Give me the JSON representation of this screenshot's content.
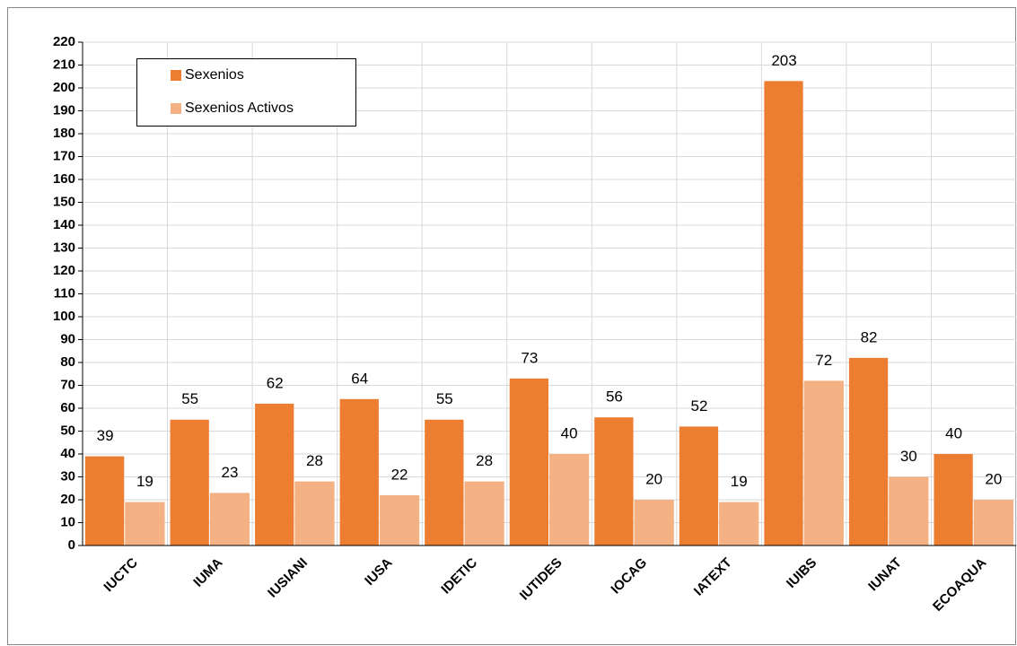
{
  "chart_data": {
    "type": "bar",
    "categories": [
      "IUCTC",
      "IUMA",
      "IUSIANI",
      "IUSA",
      "IDETIC",
      "IUTIDES",
      "IOCAG",
      "IATEXT",
      "IUIBS",
      "IUNAT",
      "ECOAQUA"
    ],
    "series": [
      {
        "name": "Sexenios",
        "color": "#ED7D31",
        "values": [
          39,
          55,
          62,
          64,
          55,
          73,
          56,
          52,
          203,
          82,
          40
        ]
      },
      {
        "name": "Sexenios Activos",
        "color": "#F4B183",
        "values": [
          19,
          23,
          28,
          22,
          28,
          40,
          20,
          19,
          72,
          30,
          20
        ]
      }
    ],
    "ylim": [
      0,
      220
    ],
    "yticks": [
      0,
      10,
      20,
      30,
      40,
      50,
      60,
      70,
      80,
      90,
      100,
      110,
      120,
      130,
      140,
      150,
      160,
      170,
      180,
      190,
      200,
      210,
      220
    ],
    "grid": true,
    "legend": "top-left"
  }
}
